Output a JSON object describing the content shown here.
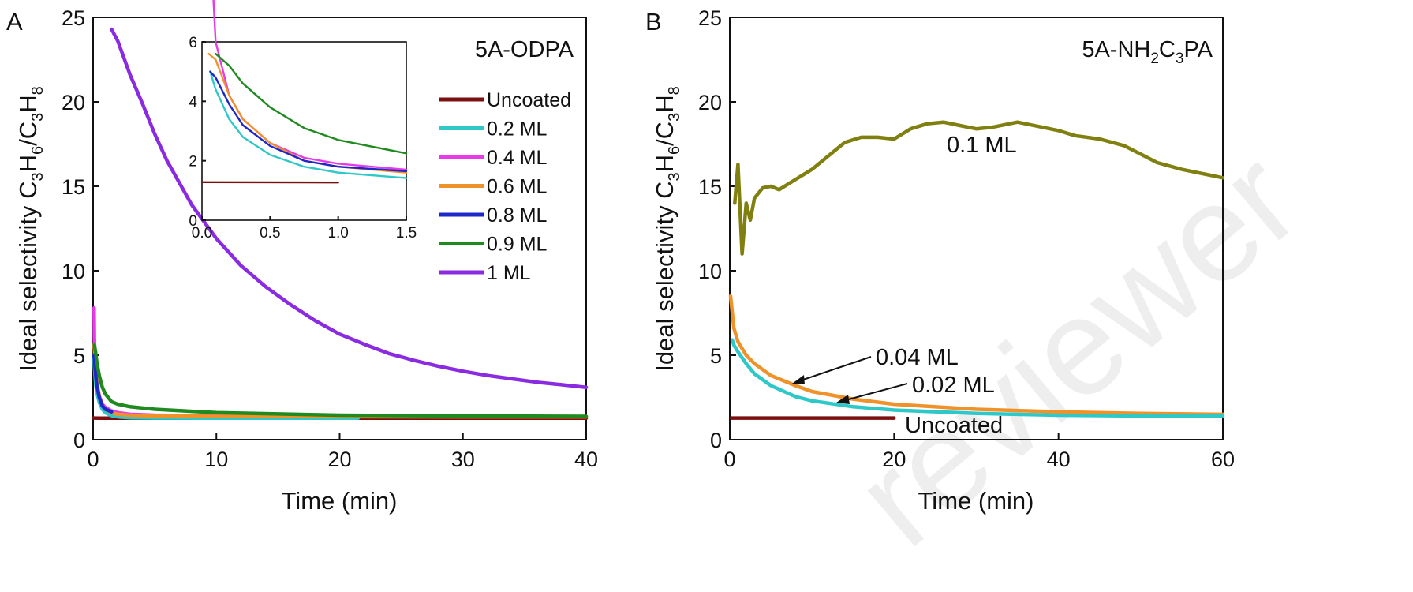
{
  "watermark": "reviewer",
  "chart_data": [
    {
      "panel": "A",
      "type": "line",
      "annotation": "5A-ODPA",
      "xlabel": "Time (min)",
      "ylabel": "Ideal selectivity C3H6/C3H8",
      "xlim": [
        0,
        40
      ],
      "ylim": [
        0,
        25
      ],
      "xticks": [
        0,
        10,
        20,
        30,
        40
      ],
      "yticks": [
        0,
        5,
        10,
        15,
        20,
        25
      ],
      "legend_position": "right",
      "series": [
        {
          "name": "Uncoated",
          "color": "#7b1010",
          "x": [
            0,
            1,
            5,
            10,
            20,
            30,
            40
          ],
          "y": [
            1.28,
            1.27,
            1.27,
            1.27,
            1.27,
            1.27,
            1.27
          ]
        },
        {
          "name": "0.2 ML",
          "color": "#2ec8c8",
          "x": [
            0.06,
            0.1,
            0.2,
            0.3,
            0.5,
            0.75,
            1.0,
            1.5,
            2,
            3,
            5,
            10,
            15,
            21.5
          ],
          "y": [
            5.0,
            4.4,
            3.4,
            2.8,
            2.2,
            1.8,
            1.6,
            1.42,
            1.35,
            1.3,
            1.28,
            1.27,
            1.27,
            1.27
          ]
        },
        {
          "name": "0.4 ML",
          "color": "#e83ae8",
          "x": [
            0.08,
            0.1,
            0.2,
            0.3,
            0.5,
            0.75,
            1.0,
            1.5,
            2,
            3,
            5,
            10,
            15,
            22.5
          ],
          "y": [
            7.8,
            6.0,
            4.2,
            3.4,
            2.6,
            2.1,
            1.9,
            1.7,
            1.6,
            1.5,
            1.45,
            1.4,
            1.38,
            1.37
          ]
        },
        {
          "name": "0.6 ML",
          "color": "#f0922a",
          "x": [
            0.05,
            0.1,
            0.2,
            0.3,
            0.5,
            0.75,
            1.0,
            1.5,
            2,
            3,
            5,
            10,
            20,
            30,
            40
          ],
          "y": [
            5.6,
            5.4,
            4.2,
            3.4,
            2.6,
            2.0,
            1.8,
            1.6,
            1.5,
            1.45,
            1.4,
            1.38,
            1.36,
            1.35,
            1.35
          ]
        },
        {
          "name": "0.8 ML",
          "color": "#1e28c8",
          "x": [
            0.06,
            0.1,
            0.2,
            0.3,
            0.5,
            0.75,
            1.0,
            1.5
          ],
          "y": [
            5.0,
            4.8,
            3.9,
            3.2,
            2.5,
            2.0,
            1.8,
            1.65
          ]
        },
        {
          "name": "0.9 ML",
          "color": "#1f8a1f",
          "x": [
            0.1,
            0.2,
            0.3,
            0.5,
            0.75,
            1.0,
            1.5,
            2,
            3,
            5,
            10,
            20,
            30,
            40
          ],
          "y": [
            5.6,
            5.2,
            4.6,
            3.8,
            3.1,
            2.7,
            2.25,
            2.1,
            1.95,
            1.8,
            1.6,
            1.45,
            1.4,
            1.38
          ]
        },
        {
          "name": "1 ML",
          "color": "#8a2be2",
          "x": [
            1.5,
            2,
            3,
            4,
            5,
            6,
            8,
            10,
            12,
            14,
            16,
            18,
            20,
            22,
            24,
            26,
            28,
            30,
            32,
            34,
            36,
            38,
            40
          ],
          "y": [
            24.3,
            23.6,
            21.6,
            19.9,
            18.1,
            16.5,
            13.9,
            11.9,
            10.3,
            9.05,
            8.0,
            7.05,
            6.25,
            5.65,
            5.1,
            4.7,
            4.35,
            4.05,
            3.8,
            3.6,
            3.4,
            3.25,
            3.1
          ]
        }
      ],
      "inset": {
        "xlim": [
          0.0,
          1.5
        ],
        "ylim": [
          0,
          6
        ],
        "xticks": [
          "0.0",
          "0.5",
          "1.0",
          "1.5"
        ],
        "yticks": [
          "0",
          "2",
          "4",
          "6"
        ]
      }
    },
    {
      "panel": "B",
      "type": "line",
      "annotation": "5A-NH2C3PA",
      "xlabel": "Time (min)",
      "ylabel": "Ideal selectivity C3H6/C3H8",
      "xlim": [
        0,
        60
      ],
      "ylim": [
        0,
        25
      ],
      "xticks": [
        0,
        20,
        40,
        60
      ],
      "yticks": [
        0,
        5,
        10,
        15,
        20,
        25
      ],
      "series": [
        {
          "name": "0.1 ML",
          "color": "#808010",
          "x": [
            0.6,
            1.0,
            1.5,
            2.0,
            2.5,
            3,
            4,
            5,
            6,
            8,
            10,
            12,
            14,
            16,
            18,
            20,
            22,
            24,
            26,
            28,
            30,
            32,
            35,
            38,
            40,
            42,
            45,
            48,
            50,
            52,
            55,
            58,
            60
          ],
          "y": [
            14.0,
            16.3,
            11.0,
            14.0,
            13.0,
            14.3,
            14.9,
            15.0,
            14.8,
            15.4,
            16.0,
            16.8,
            17.6,
            17.9,
            17.9,
            17.8,
            18.4,
            18.7,
            18.8,
            18.6,
            18.4,
            18.5,
            18.8,
            18.5,
            18.3,
            18.0,
            17.8,
            17.4,
            16.9,
            16.4,
            16.0,
            15.7,
            15.5
          ]
        },
        {
          "name": "0.04 ML",
          "color": "#f0922a",
          "x": [
            0.1,
            0.5,
            1,
            2,
            3,
            5,
            8,
            10,
            15,
            20,
            30,
            40,
            50,
            60
          ],
          "y": [
            8.5,
            6.6,
            5.8,
            5.0,
            4.5,
            3.8,
            3.2,
            2.85,
            2.4,
            2.1,
            1.8,
            1.65,
            1.55,
            1.5
          ]
        },
        {
          "name": "0.02 ML",
          "color": "#2ec8c8",
          "x": [
            0.3,
            0.5,
            1,
            2,
            3,
            5,
            8,
            10,
            15,
            20,
            30,
            40,
            50,
            60
          ],
          "y": [
            5.9,
            5.6,
            5.2,
            4.5,
            3.9,
            3.2,
            2.55,
            2.3,
            1.95,
            1.75,
            1.55,
            1.45,
            1.4,
            1.4
          ]
        },
        {
          "name": "Uncoated",
          "color": "#7b1010",
          "x": [
            0.2,
            5,
            10,
            15,
            20
          ],
          "y": [
            1.28,
            1.28,
            1.28,
            1.28,
            1.28
          ]
        }
      ],
      "labels": [
        "0.1 ML",
        "0.04 ML",
        "0.02 ML",
        "Uncoated"
      ]
    }
  ]
}
